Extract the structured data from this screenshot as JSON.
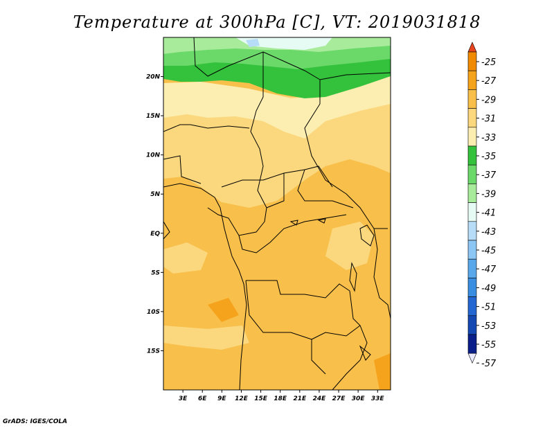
{
  "title": "Temperature at 300hPa [C], VT: 2019031818",
  "credit": "GrADS: IGES/COLA",
  "map": {
    "lon_range": [
      0,
      35
    ],
    "lat_range": [
      -20,
      25
    ],
    "lon_ticks": [
      "3E",
      "6E",
      "9E",
      "12E",
      "15E",
      "18E",
      "21E",
      "24E",
      "27E",
      "30E",
      "33E"
    ],
    "lat_ticks": [
      "20N",
      "15N",
      "10N",
      "5N",
      "EQ",
      "5S",
      "10S",
      "15S"
    ]
  },
  "colorbar": {
    "labels": [
      "-25",
      "-27",
      "-29",
      "-31",
      "-33",
      "-35",
      "-37",
      "-39",
      "-41",
      "-43",
      "-45",
      "-47",
      "-49",
      "-51",
      "-53",
      "-55",
      "-57"
    ],
    "colors": [
      "#e8451e",
      "#f08a00",
      "#f5a31c",
      "#f8bf4b",
      "#fbd87e",
      "#fbeeb0",
      "#34c23c",
      "#6bd86a",
      "#a8ec9b",
      "#e6fbf3",
      "#b6dcf8",
      "#8cc6f5",
      "#5aa8ec",
      "#3a8ee2",
      "#2466d2",
      "#1449b3",
      "#0a1f8a",
      "#e8e8ff"
    ]
  }
}
